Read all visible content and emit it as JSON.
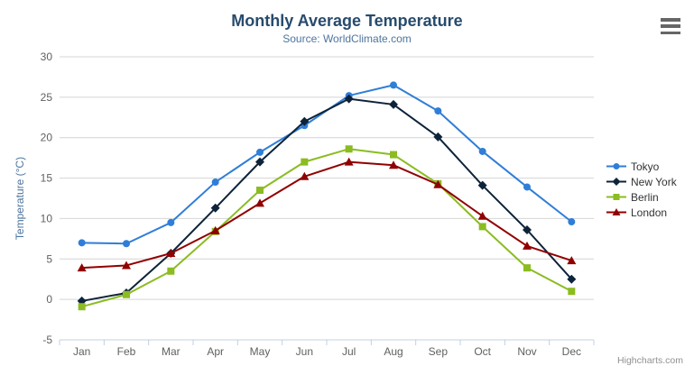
{
  "header": {
    "title": "Monthly Average Temperature",
    "subtitle": "Source: WorldClimate.com"
  },
  "credits": "Highcharts.com",
  "export_menu_icon": "hamburger-icon",
  "ui_colors": {
    "title": "#274b6d",
    "subtitle": "#4d759e",
    "axis_title": "#4d759e",
    "axis_labels": "#606060",
    "gridline": "#d4d4d4",
    "axis_line": "#c0d0e0",
    "legend_text": "#333333",
    "credits_text": "#909090",
    "background": "#ffffff"
  },
  "chart_data": {
    "type": "line",
    "title": "Monthly Average Temperature",
    "subtitle": "Source: WorldClimate.com",
    "categories": [
      "Jan",
      "Feb",
      "Mar",
      "Apr",
      "May",
      "Jun",
      "Jul",
      "Aug",
      "Sep",
      "Oct",
      "Nov",
      "Dec"
    ],
    "series": [
      {
        "name": "Tokyo",
        "marker": "circle",
        "color": "#2f7ed8",
        "values": [
          7.0,
          6.9,
          9.5,
          14.5,
          18.2,
          21.5,
          25.2,
          26.5,
          23.3,
          18.3,
          13.9,
          9.6
        ]
      },
      {
        "name": "New York",
        "marker": "diamond",
        "color": "#0d233a",
        "values": [
          -0.2,
          0.8,
          5.7,
          11.3,
          17.0,
          22.0,
          24.8,
          24.1,
          20.1,
          14.1,
          8.6,
          2.5
        ]
      },
      {
        "name": "Berlin",
        "marker": "square",
        "color": "#8bbc21",
        "values": [
          -0.9,
          0.6,
          3.5,
          8.4,
          13.5,
          17.0,
          18.6,
          17.9,
          14.3,
          9.0,
          3.9,
          1.0
        ]
      },
      {
        "name": "London",
        "marker": "triangle",
        "color": "#910000",
        "values": [
          3.9,
          4.2,
          5.7,
          8.5,
          11.9,
          15.2,
          17.0,
          16.6,
          14.2,
          10.3,
          6.6,
          4.8
        ]
      }
    ],
    "xlabel": "",
    "ylabel": "Temperature (°C)",
    "ylim": [
      -5,
      30
    ],
    "yticks": [
      -5,
      0,
      5,
      10,
      15,
      20,
      25,
      30
    ],
    "grid": true,
    "legend_position": "right"
  }
}
